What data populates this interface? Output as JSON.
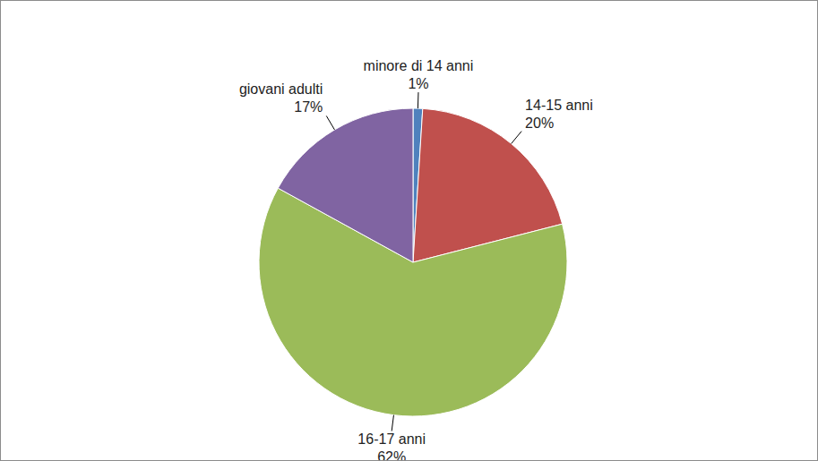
{
  "chart_data": {
    "type": "pie",
    "categories": [
      "minore di 14 anni",
      "14-15 anni",
      "16-17 anni",
      "giovani adulti"
    ],
    "values": [
      1,
      20,
      62,
      17
    ],
    "value_labels": [
      "1%",
      "20%",
      "62%",
      "17%"
    ],
    "colors": [
      "#4f81bd",
      "#c0504d",
      "#9bbb59",
      "#8064a2"
    ],
    "data_labels": true
  }
}
